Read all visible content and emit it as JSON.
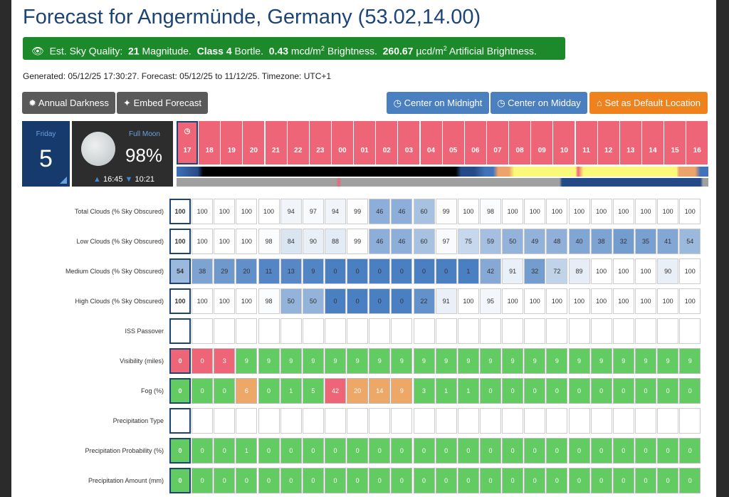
{
  "title": "Forecast for Angermünde, Germany (53.02,14.00)",
  "sky": {
    "icon": "eye-icon",
    "label": "Est. Sky Quality:",
    "mag": "21",
    "mag_unit": "Magnitude.",
    "bortle": "Class 4",
    "bortle_unit": "Bortle.",
    "brightness": "0.43",
    "brightness_unit": "mcd/m",
    "brightness_sup": "2",
    "brightness_label": "Brightness.",
    "art": "260.67",
    "art_unit": "µcd/m",
    "art_sup": "2",
    "art_label": "Artificial Brightness."
  },
  "generated": "Generated: 05/12/25 17:30:27. Forecast: 05/12/25 to 11/12/25. Timezone: UTC+1",
  "buttons": {
    "annual": "Annual Darkness",
    "embed": "Embed Forecast",
    "midnight": "Center on Midnight",
    "midday": "Center on Midday",
    "default": "Set as Default Location"
  },
  "day": {
    "name": "Friday",
    "number": "5"
  },
  "moon": {
    "phase": "Full Moon",
    "percent": "98%",
    "rise": "16:45",
    "set": "10:21"
  },
  "hours": [
    "17",
    "18",
    "19",
    "20",
    "21",
    "22",
    "23",
    "00",
    "01",
    "02",
    "03",
    "04",
    "05",
    "06",
    "07",
    "08",
    "09",
    "10",
    "11",
    "12",
    "13",
    "14",
    "15",
    "16"
  ],
  "colors": {
    "cloud_clear": "#4a7fc1",
    "good": "#62cc62",
    "warn": "#eda766",
    "bad": "#ee6577"
  },
  "rows": [
    {
      "label": "Total Clouds (% Sky Obscured)",
      "kind": "cloud",
      "values": [
        "100",
        "100",
        "100",
        "100",
        "100",
        "94",
        "97",
        "94",
        "99",
        "46",
        "46",
        "60",
        "99",
        "100",
        "98",
        "100",
        "100",
        "100",
        "100",
        "100",
        "100",
        "100",
        "100",
        "100"
      ]
    },
    {
      "label": "Low Clouds (% Sky Obscured)",
      "kind": "cloud",
      "values": [
        "100",
        "100",
        "100",
        "100",
        "98",
        "84",
        "90",
        "88",
        "99",
        "46",
        "46",
        "60",
        "97",
        "75",
        "59",
        "50",
        "49",
        "48",
        "40",
        "38",
        "32",
        "35",
        "41",
        "54"
      ]
    },
    {
      "label": "Medium Clouds (% Sky Obscured)",
      "kind": "cloud",
      "values": [
        "54",
        "38",
        "29",
        "20",
        "11",
        "13",
        "9",
        "0",
        "0",
        "0",
        "0",
        "0",
        "0",
        "1",
        "42",
        "91",
        "32",
        "72",
        "89",
        "100",
        "100",
        "100",
        "90",
        "100"
      ]
    },
    {
      "label": "High Clouds (% Sky Obscured)",
      "kind": "cloud",
      "values": [
        "100",
        "100",
        "100",
        "100",
        "98",
        "50",
        "50",
        "0",
        "0",
        "0",
        "0",
        "22",
        "91",
        "100",
        "95",
        "100",
        "100",
        "100",
        "100",
        "100",
        "100",
        "100",
        "100",
        "100"
      ]
    },
    {
      "label": "ISS Passover",
      "kind": "empty",
      "values": [
        "",
        "",
        "",
        "",
        "",
        "",
        "",
        "",
        "",
        "",
        "",
        "",
        "",
        "",
        "",
        "",
        "",
        "",
        "",
        "",
        "",
        "",
        "",
        ""
      ]
    },
    {
      "label": "Visibility (miles)",
      "kind": "vis",
      "values": [
        "0",
        "0",
        "3",
        "9",
        "9",
        "9",
        "9",
        "9",
        "9",
        "9",
        "9",
        "9",
        "9",
        "9",
        "9",
        "9",
        "9",
        "9",
        "9",
        "9",
        "9",
        "9",
        "9",
        "9"
      ]
    },
    {
      "label": "Fog (%)",
      "kind": "fog",
      "values": [
        "0",
        "0",
        "0",
        "6",
        "0",
        "1",
        "5",
        "42",
        "20",
        "14",
        "9",
        "3",
        "1",
        "1",
        "0",
        "0",
        "0",
        "0",
        "0",
        "0",
        "0",
        "0",
        "0",
        "0"
      ]
    },
    {
      "label": "Precipitation Type",
      "kind": "empty",
      "values": [
        "",
        "",
        "",
        "",
        "",
        "",
        "",
        "",
        "",
        "",
        "",
        "",
        "",
        "",
        "",
        "",
        "",
        "",
        "",
        "",
        "",
        "",
        "",
        ""
      ]
    },
    {
      "label": "Precipitation Probability (%)",
      "kind": "good",
      "values": [
        "0",
        "0",
        "0",
        "1",
        "0",
        "0",
        "0",
        "0",
        "0",
        "0",
        "0",
        "0",
        "0",
        "0",
        "0",
        "0",
        "0",
        "0",
        "0",
        "0",
        "0",
        "0",
        "0",
        "0"
      ]
    },
    {
      "label": "Precipitation Amount (mm)",
      "kind": "good",
      "values": [
        "0",
        "0",
        "0",
        "0",
        "0",
        "0",
        "0",
        "0",
        "0",
        "0",
        "0",
        "0",
        "0",
        "0",
        "0",
        "0",
        "0",
        "0",
        "0",
        "0",
        "0",
        "0",
        "0",
        "0"
      ]
    }
  ]
}
